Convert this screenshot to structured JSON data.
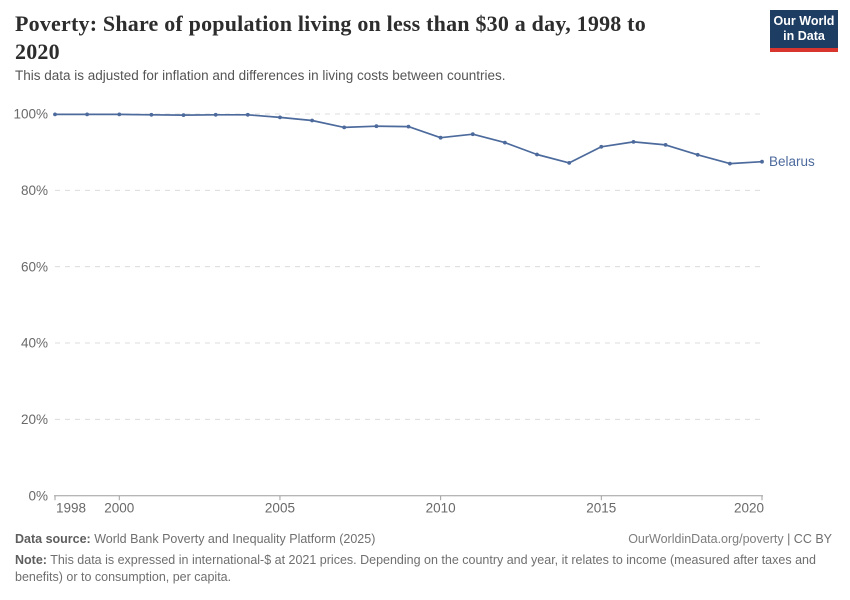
{
  "header": {
    "title": "Poverty: Share of population living on less than $30 a day, 1998 to 2020",
    "subtitle": "This data is adjusted for inflation and differences in living costs between countries.",
    "logo": {
      "line1": "Our World",
      "line2": "in Data"
    }
  },
  "chart_data": {
    "type": "line",
    "title": "Poverty: Share of population living on less than $30 a day, 1998 to 2020",
    "xlabel": "",
    "ylabel": "",
    "x": [
      1998,
      1999,
      2000,
      2001,
      2002,
      2003,
      2004,
      2005,
      2006,
      2007,
      2008,
      2009,
      2010,
      2011,
      2012,
      2013,
      2014,
      2015,
      2016,
      2017,
      2018,
      2019,
      2020
    ],
    "series": [
      {
        "name": "Belarus",
        "color": "#4c6a9c",
        "values": [
          99.9,
          99.9,
          99.9,
          99.8,
          99.7,
          99.8,
          99.8,
          99.1,
          98.3,
          96.5,
          96.8,
          96.7,
          93.8,
          94.7,
          92.5,
          89.4,
          87.2,
          91.4,
          92.7,
          91.9,
          89.3,
          87.0,
          87.5
        ]
      }
    ],
    "xlim": [
      1998,
      2020
    ],
    "ylim": [
      0,
      100
    ],
    "x_ticks": [
      1998,
      2000,
      2005,
      2010,
      2015,
      2020
    ],
    "y_ticks": [
      0,
      20,
      40,
      60,
      80,
      100
    ],
    "y_tick_suffix": "%",
    "grid": "horizontal-dashed",
    "legend_position": "line-end-label"
  },
  "footer": {
    "data_source_label": "Data source:",
    "data_source": "World Bank Poverty and Inequality Platform (2025)",
    "link": "OurWorldinData.org/poverty",
    "separator": "|",
    "license": "CC BY",
    "note_label": "Note:",
    "note": "This data is expressed in international-$ at 2021 prices. Depending on the country and year, it relates to income (measured after taxes and benefits) or to consumption, per capita."
  },
  "colors": {
    "line": "#4c6a9c",
    "logo_bg": "#1d3d63",
    "logo_accent": "#d8352e",
    "grid": "#dcdcdc",
    "axis": "#9e9e9e",
    "tick_text": "#696969"
  }
}
